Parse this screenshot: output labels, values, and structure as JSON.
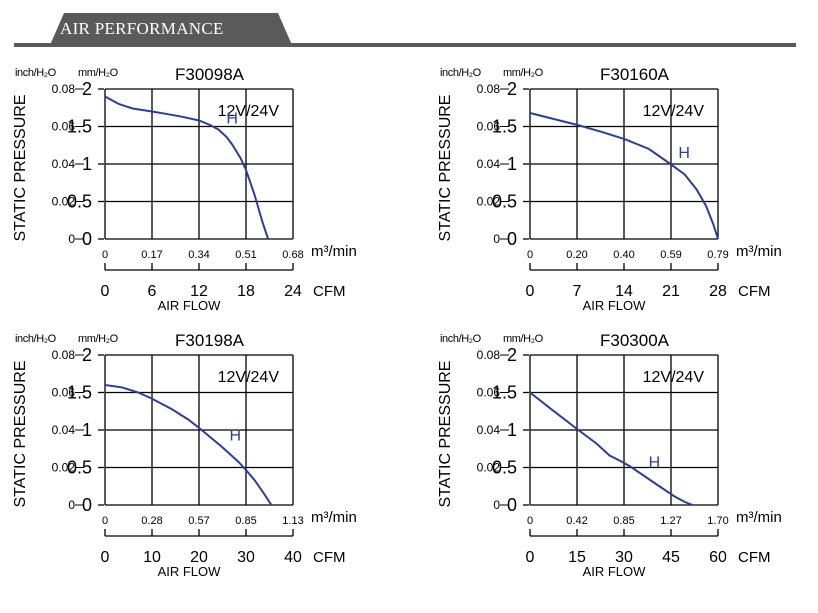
{
  "page": {
    "banner_title": "AIR PERFORMANCE"
  },
  "colors": {
    "curve": "#2b3e9a",
    "banner": "#5a5a5a",
    "grid": "#000000"
  },
  "chart_data": [
    {
      "type": "line",
      "title": "F30098A",
      "voltage_label": "12V/24V",
      "curve_label": "H",
      "ylabel": "STATIC PRESSURE",
      "xlabel": "AIR FLOW",
      "y_unit_in": "inch/H₂O",
      "y_unit_mm": "mm/H₂O",
      "x_unit_m3": "m³/min",
      "x_unit_cfm": "CFM",
      "y_ticks_mm": [
        "2",
        "1.5",
        "1",
        "0.5",
        "0"
      ],
      "y_ticks_in": [
        "0.08",
        "0.06",
        "0.04",
        "0.02",
        "0"
      ],
      "x_ticks_m3": [
        "0",
        "0.17",
        "0.34",
        "0.51",
        "0.68"
      ],
      "x_ticks_cfm": [
        "0",
        "6",
        "12",
        "18",
        "24"
      ],
      "xlim_m3": [
        0,
        0.68
      ],
      "ylim_mm": [
        0,
        2
      ],
      "series": [
        {
          "name": "H",
          "x": [
            0,
            0.05,
            0.1,
            0.17,
            0.22,
            0.28,
            0.34,
            0.38,
            0.41,
            0.44,
            0.46,
            0.49,
            0.51,
            0.54,
            0.57,
            0.59
          ],
          "y": [
            1.9,
            1.8,
            1.74,
            1.7,
            1.67,
            1.63,
            1.58,
            1.52,
            1.46,
            1.36,
            1.26,
            1.08,
            0.92,
            0.6,
            0.22,
            0
          ]
        }
      ]
    },
    {
      "type": "line",
      "title": "F30160A",
      "voltage_label": "12V/24V",
      "curve_label": "H",
      "ylabel": "STATIC PRESSURE",
      "xlabel": "AIR FLOW",
      "y_unit_in": "inch/H₂O",
      "y_unit_mm": "mm/H₂O",
      "x_unit_m3": "m³/min",
      "x_unit_cfm": "CFM",
      "y_ticks_mm": [
        "2",
        "1.5",
        "1",
        "0.5",
        "0"
      ],
      "y_ticks_in": [
        "0.08",
        "0.06",
        "0.04",
        "0.02",
        "0"
      ],
      "x_ticks_m3": [
        "0",
        "0.20",
        "0.40",
        "0.59",
        "0.79"
      ],
      "x_ticks_cfm": [
        "0",
        "7",
        "14",
        "21",
        "28"
      ],
      "xlim_m3": [
        0,
        0.79
      ],
      "ylim_mm": [
        0,
        2
      ],
      "series": [
        {
          "name": "H",
          "x": [
            0,
            0.1,
            0.2,
            0.3,
            0.4,
            0.5,
            0.59,
            0.65,
            0.7,
            0.74,
            0.77,
            0.79
          ],
          "y": [
            1.68,
            1.6,
            1.52,
            1.43,
            1.33,
            1.2,
            1.0,
            0.86,
            0.66,
            0.44,
            0.2,
            0
          ]
        }
      ]
    },
    {
      "type": "line",
      "title": "F30198A",
      "voltage_label": "12V/24V",
      "curve_label": "H",
      "ylabel": "STATIC PRESSURE",
      "xlabel": "AIR FLOW",
      "y_unit_in": "inch/H₂O",
      "y_unit_mm": "mm/H₂O",
      "x_unit_m3": "m³/min",
      "x_unit_cfm": "CFM",
      "y_ticks_mm": [
        "2",
        "1.5",
        "1",
        "0.5",
        "0"
      ],
      "y_ticks_in": [
        "0.08",
        "0.06",
        "0.04",
        "0.02",
        "0"
      ],
      "x_ticks_m3": [
        "0",
        "0.28",
        "0.57",
        "0.85",
        "1.13"
      ],
      "x_ticks_cfm": [
        "0",
        "10",
        "20",
        "30",
        "40"
      ],
      "xlim_m3": [
        0,
        1.13
      ],
      "ylim_mm": [
        0,
        2
      ],
      "series": [
        {
          "name": "H",
          "x": [
            0,
            0.1,
            0.2,
            0.28,
            0.4,
            0.5,
            0.57,
            0.7,
            0.8,
            0.85,
            0.9,
            0.95,
            1.0
          ],
          "y": [
            1.6,
            1.57,
            1.5,
            1.42,
            1.28,
            1.14,
            1.02,
            0.78,
            0.58,
            0.46,
            0.33,
            0.17,
            0
          ]
        }
      ]
    },
    {
      "type": "line",
      "title": "F30300A",
      "voltage_label": "12V/24V",
      "curve_label": "H",
      "ylabel": "STATIC PRESSURE",
      "xlabel": "AIR FLOW",
      "y_unit_in": "inch/H₂O",
      "y_unit_mm": "mm/H₂O",
      "x_unit_m3": "m³/min",
      "x_unit_cfm": "CFM",
      "y_ticks_mm": [
        "2",
        "1.5",
        "1",
        "0.5",
        "0"
      ],
      "y_ticks_in": [
        "0.08",
        "0.06",
        "0.04",
        "0.02",
        "0"
      ],
      "x_ticks_m3": [
        "0",
        "0.42",
        "0.85",
        "1.27",
        "1.70"
      ],
      "x_ticks_cfm": [
        "0",
        "15",
        "30",
        "45",
        "60"
      ],
      "xlim_m3": [
        0,
        1.7
      ],
      "ylim_mm": [
        0,
        2
      ],
      "series": [
        {
          "name": "H",
          "x": [
            0,
            0.2,
            0.42,
            0.6,
            0.72,
            0.8,
            0.9,
            1.0,
            1.1,
            1.2,
            1.3,
            1.4,
            1.47
          ],
          "y": [
            1.5,
            1.27,
            1.02,
            0.82,
            0.66,
            0.6,
            0.52,
            0.42,
            0.32,
            0.22,
            0.12,
            0.04,
            0
          ]
        }
      ]
    }
  ]
}
